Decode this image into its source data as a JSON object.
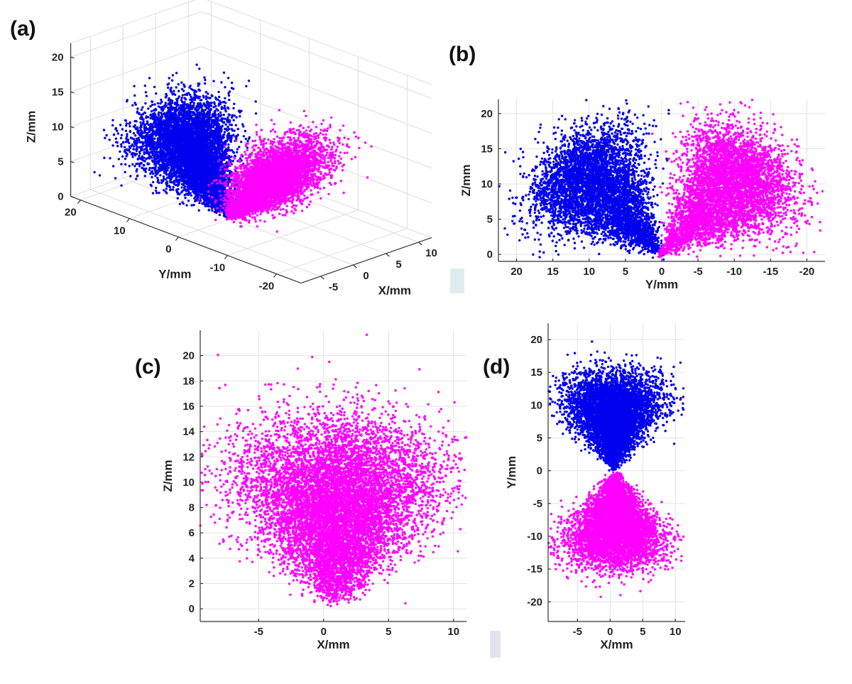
{
  "panels": {
    "a": {
      "label": "(a)"
    },
    "b": {
      "label": "(b)"
    },
    "c": {
      "label": "(c)"
    },
    "d": {
      "label": "(d)"
    }
  },
  "colors": {
    "blue": "#0000ee",
    "magenta": "#ff00ff"
  },
  "chart_data": [
    {
      "id": "a",
      "type": "scatter",
      "view": "3d",
      "title": "",
      "xlabel": "X/mm",
      "ylabel": "Y/mm",
      "zlabel": "Z/mm",
      "x_ticks": [
        -5,
        0,
        5,
        10
      ],
      "y_ticks": [
        20,
        10,
        0,
        -10,
        -20
      ],
      "z_ticks": [
        0,
        5,
        10,
        15,
        20
      ],
      "xlim": [
        -8,
        12
      ],
      "ylim": [
        -25,
        22
      ],
      "zlim": [
        0,
        22
      ],
      "series": [
        {
          "name": "blue",
          "color": "#0000ee",
          "peak": {
            "x": 0,
            "y": 11,
            "z": 11
          }
        },
        {
          "name": "magenta",
          "color": "#ff00ff",
          "peak": {
            "x": 0,
            "y": -11,
            "z": 11
          }
        }
      ]
    },
    {
      "id": "b",
      "type": "scatter",
      "title": "",
      "xlabel": "Y/mm",
      "ylabel": "Z/mm",
      "xlim": [
        22.5,
        -22.5
      ],
      "ylim": [
        -1,
        22
      ],
      "x_ticks": [
        20,
        15,
        10,
        5,
        0,
        -5,
        -10,
        -15,
        -20
      ],
      "y_ticks": [
        0,
        5,
        10,
        15,
        20
      ],
      "grid": true,
      "series": [
        {
          "name": "blue",
          "color": "#0000ee",
          "peak": {
            "x": 11.5,
            "y": 12
          }
        },
        {
          "name": "magenta",
          "color": "#ff00ff",
          "peak": {
            "x": -12,
            "y": 12
          }
        }
      ]
    },
    {
      "id": "c",
      "type": "scatter",
      "title": "",
      "xlabel": "X/mm",
      "ylabel": "Z/mm",
      "xlim": [
        -9.5,
        11
      ],
      "ylim": [
        -1,
        22
      ],
      "x_ticks": [
        -5,
        0,
        5,
        10
      ],
      "y_ticks": [
        0,
        2,
        4,
        6,
        8,
        10,
        12,
        14,
        16,
        18,
        20
      ],
      "grid": true,
      "series": [
        {
          "name": "magenta",
          "color": "#ff00ff",
          "peak": {
            "x": 1,
            "y": 11
          }
        }
      ]
    },
    {
      "id": "d",
      "type": "scatter",
      "title": "",
      "xlabel": "X/mm",
      "ylabel": "Y/mm",
      "xlim": [
        -9.5,
        11.5
      ],
      "ylim": [
        -23,
        22.5
      ],
      "x_ticks": [
        -5,
        0,
        5,
        10
      ],
      "y_ticks": [
        -20,
        -15,
        -10,
        -5,
        0,
        5,
        10,
        15,
        20
      ],
      "grid": true,
      "series": [
        {
          "name": "blue",
          "color": "#0000ee",
          "peak": {
            "x": 0.5,
            "y": 12
          }
        },
        {
          "name": "magenta",
          "color": "#ff00ff",
          "peak": {
            "x": 0.5,
            "y": -12
          }
        }
      ]
    }
  ]
}
